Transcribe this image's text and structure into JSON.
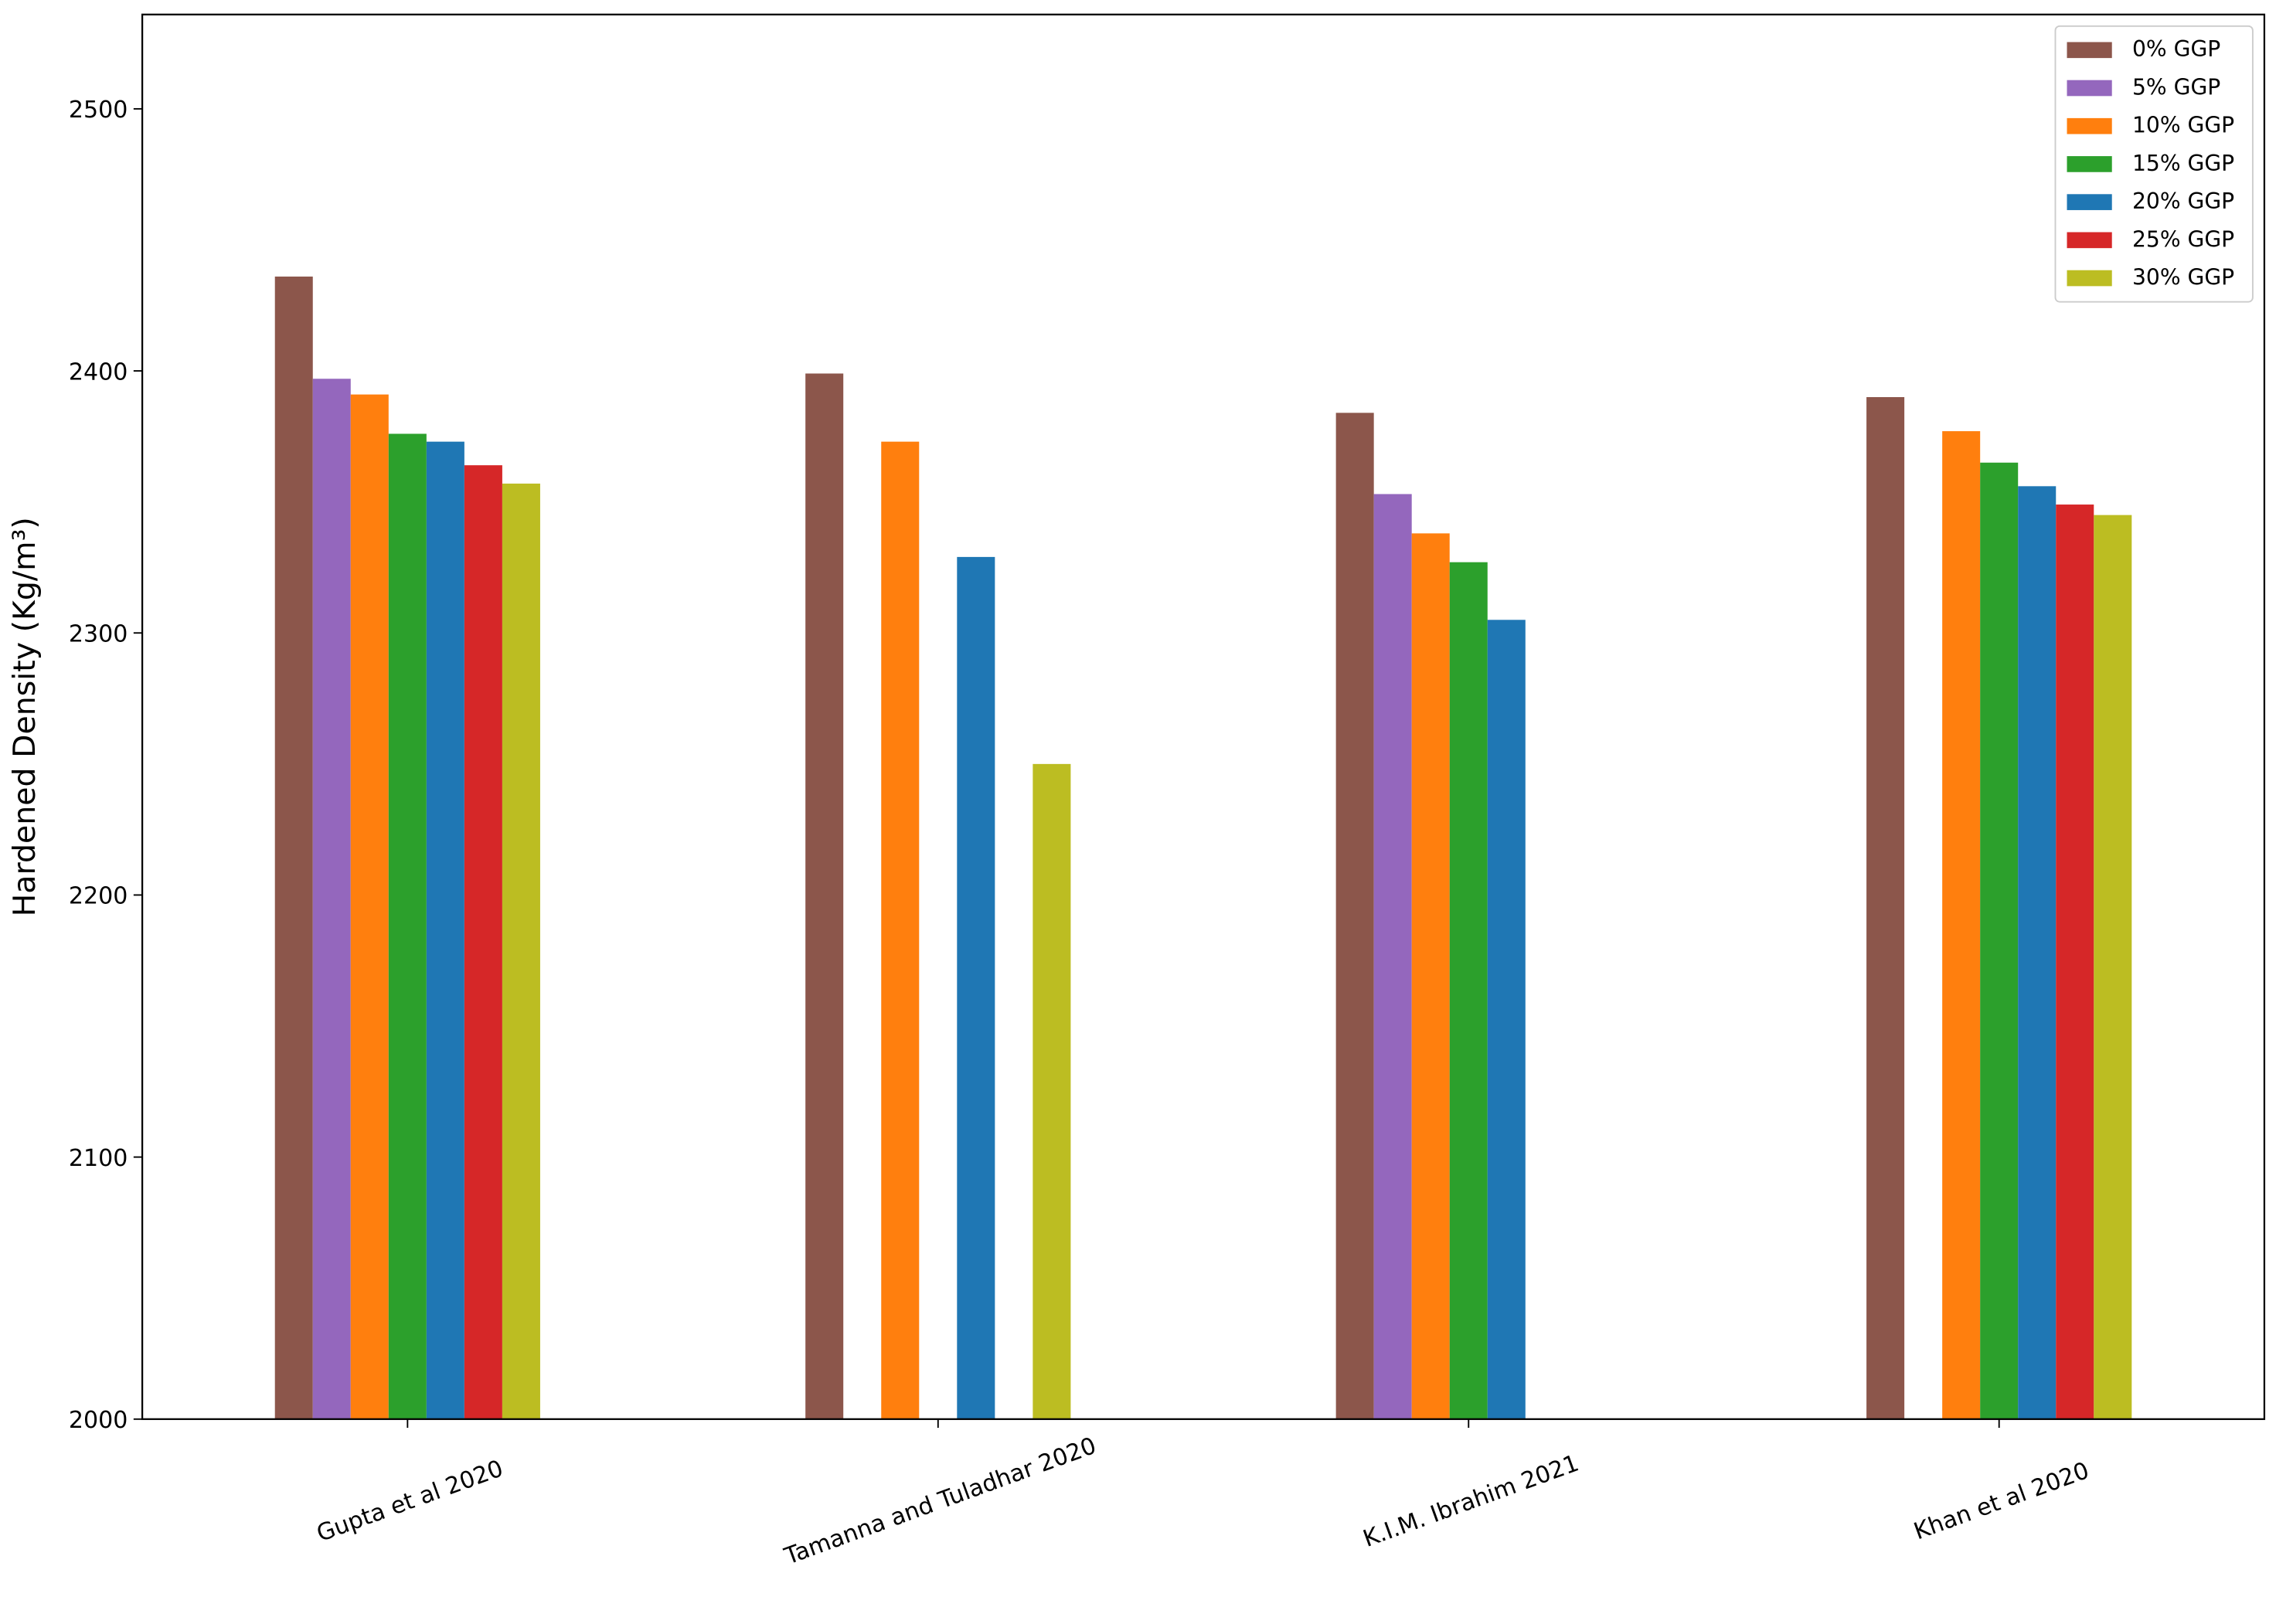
{
  "chart_data": {
    "type": "bar",
    "y_label": "Hardened Density (Kg/m³)",
    "categories": [
      "Gupta et al 2020",
      "Tamanna and Tuladhar 2020",
      "K.I.M. Ibrahim 2021",
      "Khan et al 2020"
    ],
    "series": [
      {
        "name": "0% GGP",
        "color": "#8c564b",
        "values": [
          2436,
          2399,
          2384,
          2390
        ]
      },
      {
        "name": "5% GGP",
        "color": "#9467bd",
        "values": [
          2397,
          null,
          2353,
          null
        ]
      },
      {
        "name": "10% GGP",
        "color": "#ff7f0e",
        "values": [
          2391,
          2373,
          2338,
          2377
        ]
      },
      {
        "name": "15% GGP",
        "color": "#2ca02c",
        "values": [
          2376,
          null,
          2327,
          2365
        ]
      },
      {
        "name": "20% GGP",
        "color": "#1f77b4",
        "values": [
          2373,
          2329,
          2305,
          2356
        ]
      },
      {
        "name": "25% GGP",
        "color": "#d62728",
        "values": [
          2364,
          null,
          null,
          2349
        ]
      },
      {
        "name": "30% GGP",
        "color": "#bcbd22",
        "values": [
          2357,
          2250,
          null,
          2345
        ]
      }
    ],
    "ylim": [
      2000,
      2536
    ],
    "yticks": [
      2000,
      2100,
      2200,
      2300,
      2400,
      2500
    ],
    "legend": "upper right",
    "grid": false
  }
}
